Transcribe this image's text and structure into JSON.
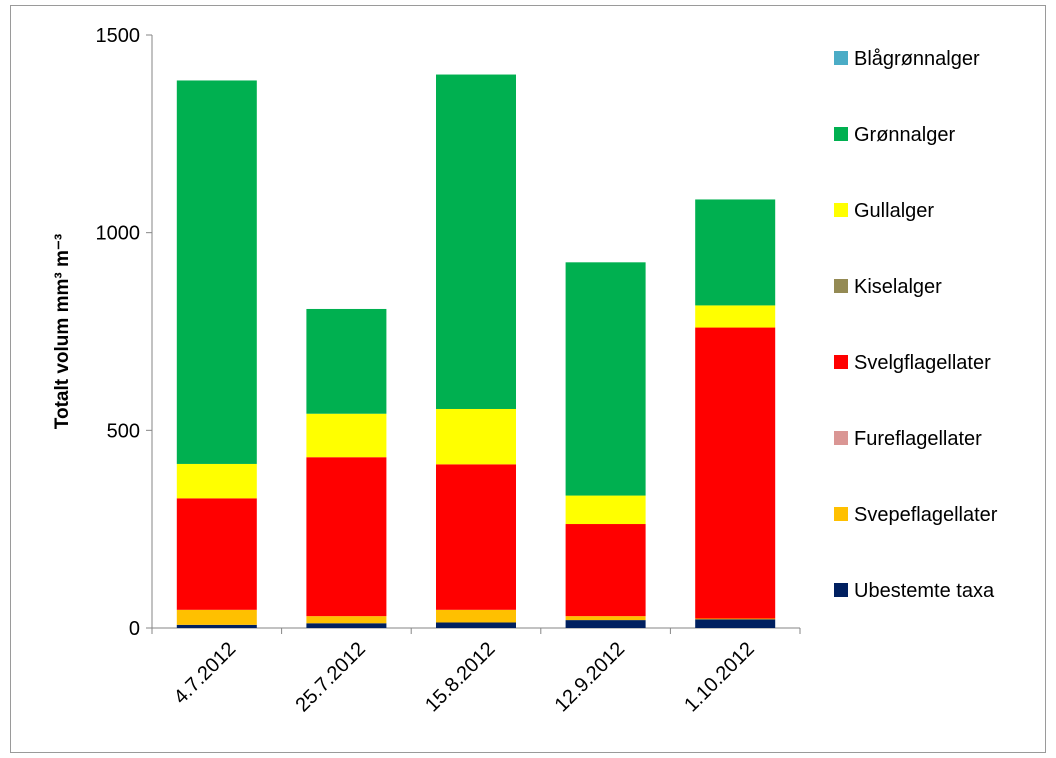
{
  "chart_data": {
    "type": "bar",
    "stacked": true,
    "title": "",
    "xlabel": "",
    "ylabel": "Totalt volum mm³ m⁻³",
    "ylim": [
      0,
      1500
    ],
    "yticks": [
      0,
      500,
      1000,
      1500
    ],
    "grid": false,
    "legend_position": "right",
    "categories": [
      "4.7.2012",
      "25.7.2012",
      "15.8.2012",
      "12.9.2012",
      "1.10.2012"
    ],
    "series": [
      {
        "name": "Ubestemte taxa",
        "color": "#002060",
        "values": [
          8,
          12,
          14,
          20,
          22
        ]
      },
      {
        "name": "Svepeflagellater",
        "color": "#ffc000",
        "values": [
          38,
          18,
          32,
          10,
          2
        ]
      },
      {
        "name": "Fureflagellater",
        "color": "#da9694",
        "values": [
          0,
          0,
          0,
          0,
          0
        ]
      },
      {
        "name": "Svelgflagellater",
        "color": "#ff0000",
        "values": [
          282,
          402,
          368,
          233,
          736
        ]
      },
      {
        "name": "Kiselalger",
        "color": "#948a54",
        "values": [
          0,
          0,
          0,
          0,
          0
        ]
      },
      {
        "name": "Gullalger",
        "color": "#ffff00",
        "values": [
          87,
          110,
          140,
          72,
          56
        ]
      },
      {
        "name": "Grønnalger",
        "color": "#00b050",
        "values": [
          970,
          265,
          846,
          590,
          268
        ]
      },
      {
        "name": "Blågrønnalger",
        "color": "#4bacc6",
        "values": [
          0,
          0,
          0,
          0,
          0
        ]
      }
    ],
    "legend_order": [
      "Blågrønnalger",
      "Grønnalger",
      "Gullalger",
      "Kiselalger",
      "Svelgflagellater",
      "Fureflagellater",
      "Svepeflagellater",
      "Ubestemte taxa"
    ]
  }
}
